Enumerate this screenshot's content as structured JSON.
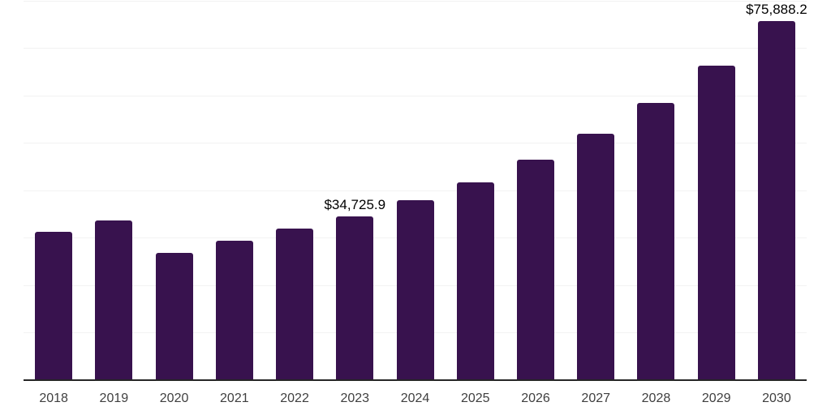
{
  "chart_data": {
    "type": "bar",
    "title": "",
    "xlabel": "",
    "ylabel": "",
    "legend": "none",
    "grid": true,
    "categories": [
      "2018",
      "2019",
      "2020",
      "2021",
      "2022",
      "2023",
      "2024",
      "2025",
      "2026",
      "2027",
      "2028",
      "2029",
      "2030"
    ],
    "values": [
      31400,
      33800,
      27000,
      29600,
      32100,
      34725.9,
      38100,
      41800,
      46600,
      52100,
      58600,
      66400,
      75888.2
    ],
    "data_labels": [
      "",
      "",
      "",
      "",
      "",
      "$34,725.9",
      "",
      "",
      "",
      "",
      "",
      "",
      "$75,888.2"
    ],
    "ylim": [
      0,
      80000
    ],
    "gridline_step": 10000,
    "colors": {
      "bar": "#38124E",
      "background": "#ffffff",
      "gridline": "#f2f2f2",
      "axis_line": "#262626",
      "data_label": "#000000",
      "tick_label": "#3f3f3f"
    }
  }
}
